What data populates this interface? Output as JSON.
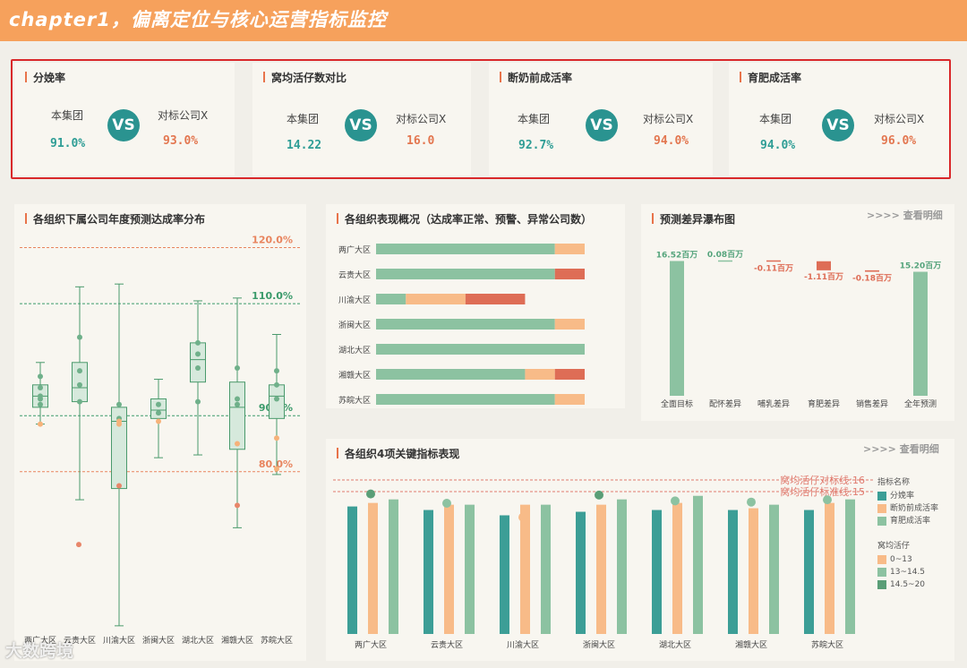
{
  "header": {
    "title": "chapter1，偏离定位与核心运营指标监控"
  },
  "kpis": [
    {
      "title": "分娩率",
      "label_a": "本集团",
      "label_b": "对标公司X",
      "value_a": "91.0%",
      "value_b": "93.0%",
      "vs": "VS"
    },
    {
      "title": "窝均活仔数对比",
      "label_a": "本集团",
      "label_b": "对标公司X",
      "value_a": "14.22",
      "value_b": "16.0",
      "vs": "VS"
    },
    {
      "title": "断奶前成活率",
      "label_a": "本集团",
      "label_b": "对标公司X",
      "value_a": "92.7%",
      "value_b": "94.0%",
      "vs": "VS"
    },
    {
      "title": "育肥成活率",
      "label_a": "本集团",
      "label_b": "对标公司X",
      "value_a": "94.0%",
      "value_b": "96.0%",
      "vs": "VS"
    }
  ],
  "colors": {
    "teal": "#2e9d95",
    "green": "#8cc2a1",
    "orange": "#f8bb88",
    "red": "#de6d56",
    "header": "#f6a15c"
  },
  "detail_link": ">>>> 查看明细",
  "watermark": "大数跨境",
  "chart_data": [
    {
      "type": "boxplot",
      "title": "各组织下属公司年度预测达成率分布",
      "categories": [
        "两广大区",
        "云贵大区",
        "川渝大区",
        "浙闽大区",
        "湖北大区",
        "湘赣大区",
        "苏皖大区"
      ],
      "reference_lines": [
        {
          "label": "120.0%",
          "value": 120,
          "color": "#e8845e"
        },
        {
          "label": "110.0%",
          "value": 110,
          "color": "#3a9a6a"
        },
        {
          "label": "90.0%",
          "value": 90,
          "color": "#3a9a6a"
        },
        {
          "label": "80.0%",
          "value": 80,
          "color": "#e8845e"
        }
      ],
      "ylim": [
        52,
        122
      ],
      "boxes": [
        {
          "min": 88.5,
          "q1": 91.5,
          "median": 93.5,
          "q3": 95.5,
          "max": 99.5,
          "points": [
            93,
            95,
            97,
            93.5,
            92
          ],
          "outliers_orange": [
            88.5
          ],
          "outliers_red": []
        },
        {
          "min": 75,
          "q1": 92.5,
          "median": 95,
          "q3": 99.5,
          "max": 113,
          "points": [
            92.5,
            95.5,
            98,
            104
          ],
          "outliers_orange": [],
          "outliers_red": [
            67
          ]
        },
        {
          "min": 52.5,
          "q1": 77,
          "median": 89,
          "q3": 91.5,
          "max": 113.5,
          "points": [
            92,
            89.5
          ],
          "outliers_orange": [
            89,
            88.5
          ],
          "outliers_red": [
            77.5
          ]
        },
        {
          "min": 82.5,
          "q1": 89.5,
          "median": 91,
          "q3": 93,
          "max": 96.5,
          "points": [
            92,
            90.5
          ],
          "outliers_orange": [
            89
          ],
          "outliers_red": []
        },
        {
          "min": 83,
          "q1": 96,
          "median": 100,
          "q3": 103,
          "max": 110.5,
          "points": [
            103,
            101,
            98.5,
            92.5
          ],
          "outliers_orange": [],
          "outliers_red": []
        },
        {
          "min": 70,
          "q1": 84,
          "median": 91.5,
          "q3": 96,
          "max": 111,
          "points": [
            98.5,
            93,
            92
          ],
          "outliers_orange": [
            85
          ],
          "outliers_red": [
            74
          ]
        },
        {
          "min": 79.5,
          "q1": 89.5,
          "median": 93.5,
          "q3": 95.5,
          "max": 104.5,
          "points": [
            95.5,
            93,
            98
          ],
          "outliers_orange": [
            86,
            80.5
          ],
          "outliers_red": []
        }
      ]
    },
    {
      "type": "bar",
      "stacked": true,
      "orientation": "horizontal",
      "title": "各组织表现概况（达成率正常、预警、异常公司数）",
      "categories": [
        "两广大区",
        "云贵大区",
        "川渝大区",
        "浙闽大区",
        "湖北大区",
        "湘赣大区",
        "苏皖大区"
      ],
      "series": [
        {
          "color": "#8cc2a1",
          "values": [
            6,
            6,
            1,
            6,
            7,
            5,
            6
          ]
        },
        {
          "color": "#f8bb88",
          "values": [
            1,
            0,
            2,
            1,
            0,
            1,
            1
          ]
        },
        {
          "color": "#de6d56",
          "values": [
            0,
            1,
            2,
            0,
            0,
            1,
            0
          ]
        }
      ]
    },
    {
      "type": "waterfall",
      "title": "预测差异瀑布图",
      "categories": [
        "全面目标",
        "配怀差异",
        "哺乳差异",
        "育肥差异",
        "销售差异",
        "全年预测"
      ],
      "values": [
        16.52,
        0.08,
        -0.11,
        -1.11,
        -0.18,
        15.2
      ],
      "labels": [
        "16.52百万",
        "0.08百万",
        "-0.11百万",
        "-1.11百万",
        "-0.18百万",
        "15.20百万"
      ],
      "ylim": [
        0,
        18
      ]
    },
    {
      "type": "bar",
      "title": "各组织4项关键指标表现",
      "categories": [
        "两广大区",
        "云贵大区",
        "川渝大区",
        "浙闽大区",
        "湖北大区",
        "湘赣大区",
        "苏皖大区"
      ],
      "series": [
        {
          "name": "分娩率",
          "color": "#3c9e96",
          "values": [
            91,
            90,
            88.5,
            89.5,
            90,
            90,
            90
          ]
        },
        {
          "name": "断奶前成活率",
          "color": "#f8bb88",
          "values": [
            92,
            91.5,
            91.5,
            91.5,
            92,
            90.5,
            92
          ]
        },
        {
          "name": "育肥成活率",
          "color": "#8cc2a1",
          "values": [
            93,
            91.5,
            91.5,
            93,
            94,
            91.5,
            93
          ]
        }
      ],
      "ylim": [
        55,
        100
      ],
      "dots": [
        {
          "value": 14.8,
          "group": "14.5~20",
          "color": "#5a9e77"
        },
        {
          "value": 14.0,
          "group": "13~14.5",
          "color": "#8cc2a1"
        },
        {
          "value": 12.8,
          "group": "0~13",
          "color": "#f8bb88"
        },
        {
          "value": 14.7,
          "group": "14.5~20",
          "color": "#5a9e77"
        },
        {
          "value": 14.2,
          "group": "13~14.5",
          "color": "#8cc2a1"
        },
        {
          "value": 14.1,
          "group": "13~14.5",
          "color": "#8cc2a1"
        },
        {
          "value": 14.3,
          "group": "13~14.5",
          "color": "#8cc2a1"
        }
      ],
      "dot_ylim": [
        8,
        18
      ],
      "lines": [
        {
          "label": "窝均活仔对标线:16",
          "value": 16
        },
        {
          "label": "窝均活仔标准线:15",
          "value": 15
        }
      ],
      "legend": {
        "title_1": "指标名称",
        "items_1": [
          "分娩率",
          "断奶前成活率",
          "育肥成活率"
        ],
        "title_2": "窝均活仔",
        "items_2": [
          {
            "name": "0~13",
            "color": "#f8bb88"
          },
          {
            "name": "13~14.5",
            "color": "#8cc2a1"
          },
          {
            "name": "14.5~20",
            "color": "#5a9e77"
          }
        ]
      }
    }
  ]
}
